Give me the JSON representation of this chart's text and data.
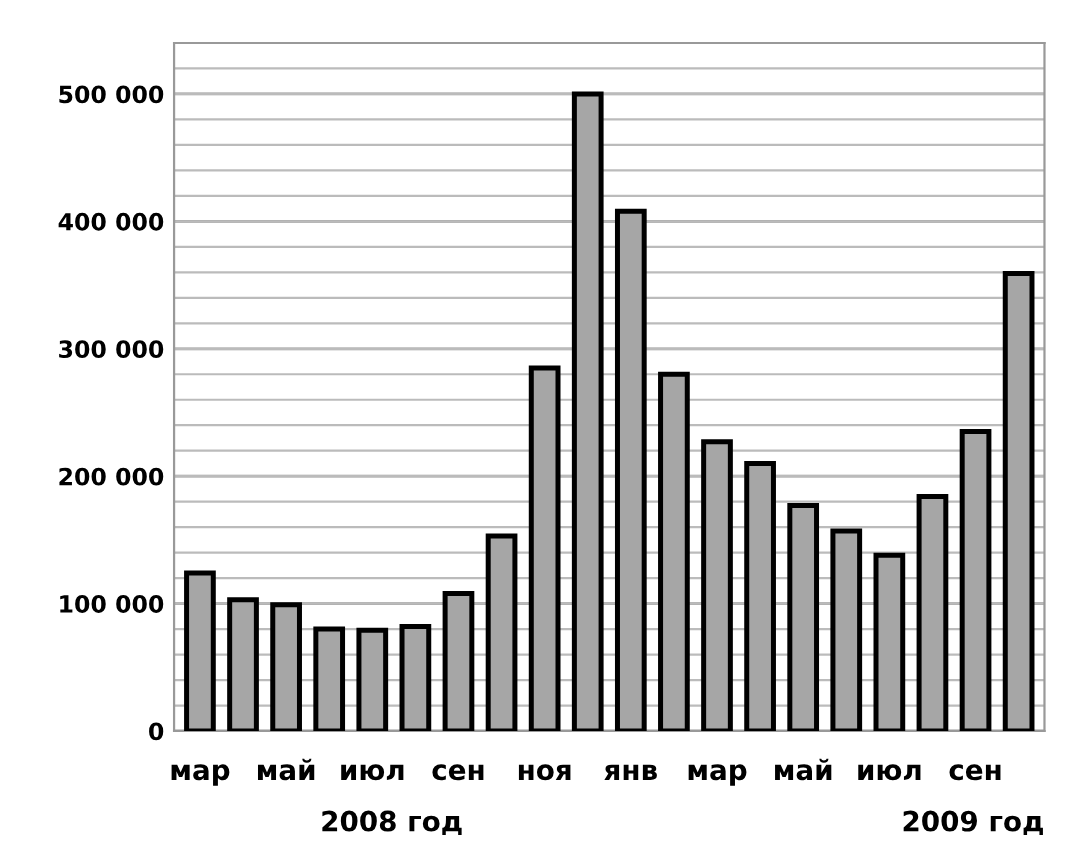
{
  "chart_data": {
    "type": "bar",
    "categories": [
      "мар",
      null,
      "май",
      null,
      "июл",
      null,
      "сен",
      null,
      "ноя",
      null,
      "янв",
      null,
      "мар",
      null,
      "май",
      null,
      "июл",
      null,
      "сен",
      null
    ],
    "values": [
      124000,
      103000,
      99000,
      80000,
      79000,
      82000,
      108000,
      153000,
      285000,
      500000,
      408000,
      280000,
      227000,
      210000,
      177000,
      157000,
      138000,
      184000,
      235000,
      359000
    ],
    "color": "#a6a6a6",
    "ylim": [
      0,
      540000
    ],
    "yticks": [
      {
        "value": 0,
        "label": "0"
      },
      {
        "value": 20000,
        "label": null
      },
      {
        "value": 40000,
        "label": null
      },
      {
        "value": 60000,
        "label": null
      },
      {
        "value": 80000,
        "label": null
      },
      {
        "value": 100000,
        "label": "100 000"
      },
      {
        "value": 120000,
        "label": null
      },
      {
        "value": 140000,
        "label": null
      },
      {
        "value": 160000,
        "label": null
      },
      {
        "value": 180000,
        "label": null
      },
      {
        "value": 200000,
        "label": "200 000"
      },
      {
        "value": 220000,
        "label": null
      },
      {
        "value": 240000,
        "label": null
      },
      {
        "value": 260000,
        "label": null
      },
      {
        "value": 280000,
        "label": null
      },
      {
        "value": 300000,
        "label": "300 000"
      },
      {
        "value": 320000,
        "label": null
      },
      {
        "value": 340000,
        "label": null
      },
      {
        "value": 360000,
        "label": null
      },
      {
        "value": 380000,
        "label": null
      },
      {
        "value": 400000,
        "label": "400 000"
      },
      {
        "value": 420000,
        "label": null
      },
      {
        "value": 440000,
        "label": null
      },
      {
        "value": 460000,
        "label": null
      },
      {
        "value": 480000,
        "label": null
      },
      {
        "value": 500000,
        "label": "500 000"
      },
      {
        "value": 520000,
        "label": null
      },
      {
        "value": 540000,
        "label": null
      }
    ],
    "grid": "y",
    "annotations": [
      "2008 год",
      "2009 год"
    ]
  }
}
